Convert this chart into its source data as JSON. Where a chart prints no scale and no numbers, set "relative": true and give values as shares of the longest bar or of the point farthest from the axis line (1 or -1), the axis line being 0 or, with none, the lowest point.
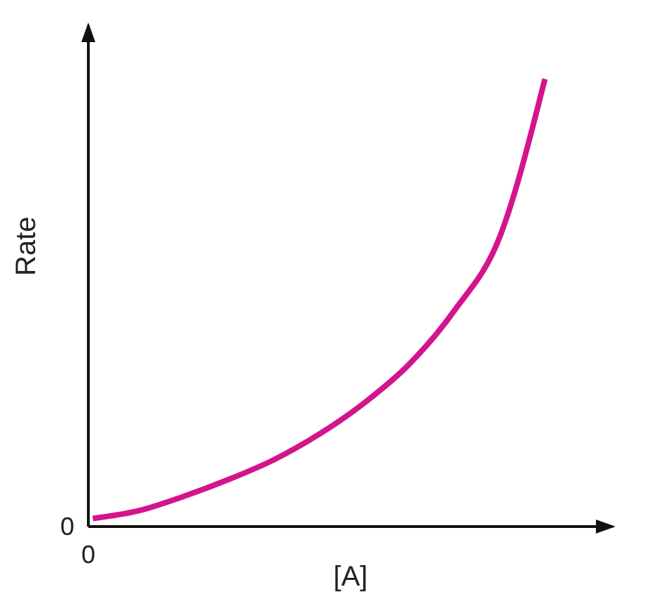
{
  "chart_data": {
    "type": "line",
    "relative": true,
    "xlabel": "[A]",
    "ylabel": "Rate",
    "categories": [
      null,
      null,
      null,
      null,
      null,
      null,
      null,
      null,
      null,
      null,
      null
    ],
    "series": [
      {
        "color": "#d4148c",
        "values": [
          0.018,
          0.035,
          0.067,
          0.105,
          0.149,
          0.206,
          0.276,
          0.363,
          0.483,
          0.647,
          1
        ]
      }
    ],
    "annotations": [
      "0",
      "0"
    ],
    "marker": "none",
    "line_style": "solid"
  }
}
